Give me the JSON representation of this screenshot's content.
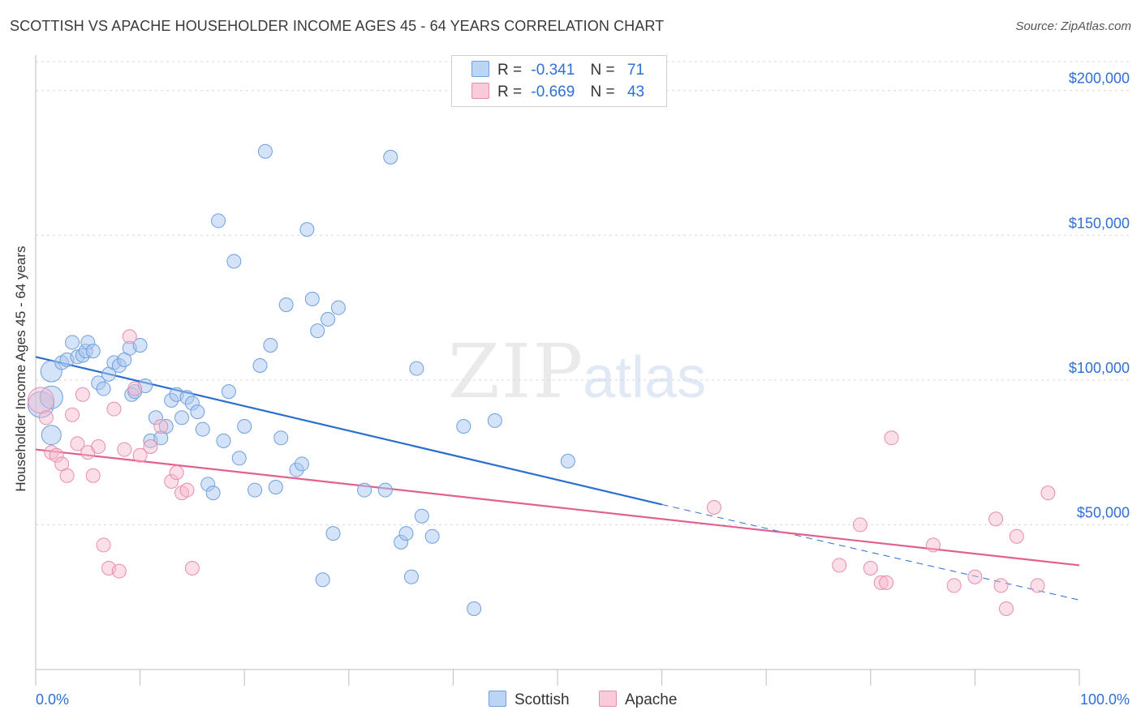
{
  "title": "SCOTTISH VS APACHE HOUSEHOLDER INCOME AGES 45 - 64 YEARS CORRELATION CHART",
  "source": "Source: ZipAtlas.com",
  "watermark": {
    "zip": "ZIP",
    "atlas": "atlas"
  },
  "legend": {
    "r_label": "R =",
    "n_label": "N =",
    "rows": [
      {
        "r": "-0.341",
        "n": "71"
      },
      {
        "r": "-0.669",
        "n": "43"
      }
    ]
  },
  "chart_data": {
    "type": "scatter",
    "title": "SCOTTISH VS APACHE HOUSEHOLDER INCOME AGES 45 - 64 YEARS CORRELATION CHART",
    "xlabel": "",
    "ylabel": "Householder Income Ages 45 - 64 years",
    "xlim": [
      0,
      100
    ],
    "ylim": [
      0,
      210000
    ],
    "x_tick_labels": [
      "0.0%",
      "100.0%"
    ],
    "y_ticks": [
      50000,
      100000,
      150000,
      200000
    ],
    "y_tick_labels": [
      "$50,000",
      "$100,000",
      "$150,000",
      "$200,000"
    ],
    "grid": true,
    "legend_position": "bottom-center",
    "colors": {
      "Scottish": "#a9c8f0",
      "Apache": "#f5b8cc",
      "Scottish_line": "#2a6fcf",
      "Apache_line": "#e0608f"
    },
    "series": [
      {
        "name": "Scottish",
        "points": [
          [
            0.5,
            91500
          ],
          [
            1.5,
            81000
          ],
          [
            1.5,
            94000
          ],
          [
            1.5,
            103000
          ],
          [
            2.5,
            106000
          ],
          [
            3,
            107000
          ],
          [
            3.5,
            113000
          ],
          [
            4,
            108000
          ],
          [
            4.5,
            108500
          ],
          [
            4.8,
            110000
          ],
          [
            5,
            113000
          ],
          [
            5.5,
            110000
          ],
          [
            6,
            99000
          ],
          [
            6.5,
            97000
          ],
          [
            7,
            102000
          ],
          [
            7.5,
            106000
          ],
          [
            8,
            105000
          ],
          [
            8.5,
            107000
          ],
          [
            9,
            111000
          ],
          [
            9.2,
            95000
          ],
          [
            9.5,
            96000
          ],
          [
            10,
            112000
          ],
          [
            10.5,
            98000
          ],
          [
            11,
            79000
          ],
          [
            11.5,
            87000
          ],
          [
            12,
            80000
          ],
          [
            12.5,
            84000
          ],
          [
            13,
            93000
          ],
          [
            13.5,
            95000
          ],
          [
            14,
            87000
          ],
          [
            14.5,
            94000
          ],
          [
            15,
            92000
          ],
          [
            15.5,
            89000
          ],
          [
            16,
            83000
          ],
          [
            16.5,
            64000
          ],
          [
            17,
            61000
          ],
          [
            17.5,
            155000
          ],
          [
            18,
            79000
          ],
          [
            18.5,
            96000
          ],
          [
            19,
            141000
          ],
          [
            19.5,
            73000
          ],
          [
            20,
            84000
          ],
          [
            21,
            62000
          ],
          [
            21.5,
            105000
          ],
          [
            22,
            179000
          ],
          [
            22.5,
            112000
          ],
          [
            23,
            63000
          ],
          [
            23.5,
            80000
          ],
          [
            24,
            126000
          ],
          [
            25,
            69000
          ],
          [
            25.5,
            71000
          ],
          [
            26,
            152000
          ],
          [
            26.5,
            128000
          ],
          [
            27,
            117000
          ],
          [
            27.5,
            31000
          ],
          [
            28,
            121000
          ],
          [
            28.5,
            47000
          ],
          [
            29,
            125000
          ],
          [
            31.5,
            62000
          ],
          [
            33.5,
            62000
          ],
          [
            34,
            177000
          ],
          [
            35,
            44000
          ],
          [
            35.5,
            47000
          ],
          [
            36,
            32000
          ],
          [
            36.5,
            104000
          ],
          [
            37,
            53000
          ],
          [
            38,
            46000
          ],
          [
            41,
            84000
          ],
          [
            42,
            21000
          ],
          [
            44,
            86000
          ],
          [
            51,
            72000
          ]
        ]
      },
      {
        "name": "Apache",
        "points": [
          [
            0.5,
            93000
          ],
          [
            1,
            87000
          ],
          [
            1.5,
            75000
          ],
          [
            2,
            74000
          ],
          [
            2.5,
            71000
          ],
          [
            3,
            67000
          ],
          [
            3.5,
            88000
          ],
          [
            4,
            78000
          ],
          [
            4.5,
            95000
          ],
          [
            5,
            75000
          ],
          [
            5.5,
            67000
          ],
          [
            6,
            77000
          ],
          [
            6.5,
            43000
          ],
          [
            7,
            35000
          ],
          [
            7.5,
            90000
          ],
          [
            8,
            34000
          ],
          [
            8.5,
            76000
          ],
          [
            9,
            115000
          ],
          [
            9.5,
            97000
          ],
          [
            10,
            74000
          ],
          [
            11,
            77000
          ],
          [
            12,
            84000
          ],
          [
            13,
            65000
          ],
          [
            13.5,
            68000
          ],
          [
            14,
            61000
          ],
          [
            14.5,
            62000
          ],
          [
            15,
            35000
          ],
          [
            65,
            56000
          ],
          [
            77,
            36000
          ],
          [
            79,
            50000
          ],
          [
            80,
            35000
          ],
          [
            81,
            30000
          ],
          [
            81.5,
            30000
          ],
          [
            82,
            80000
          ],
          [
            86,
            43000
          ],
          [
            88,
            29000
          ],
          [
            90,
            32000
          ],
          [
            92,
            52000
          ],
          [
            92.5,
            29000
          ],
          [
            93,
            21000
          ],
          [
            94,
            46000
          ],
          [
            96,
            29000
          ],
          [
            97,
            61000
          ]
        ]
      }
    ],
    "trend_lines": [
      {
        "name": "Scottish",
        "x": [
          0,
          60
        ],
        "y": [
          108000,
          57000
        ],
        "dashed_extension_to_x": 100,
        "dashed_extension_y": 24000
      },
      {
        "name": "Apache",
        "x": [
          0,
          100
        ],
        "y": [
          76000,
          36000
        ]
      }
    ]
  }
}
